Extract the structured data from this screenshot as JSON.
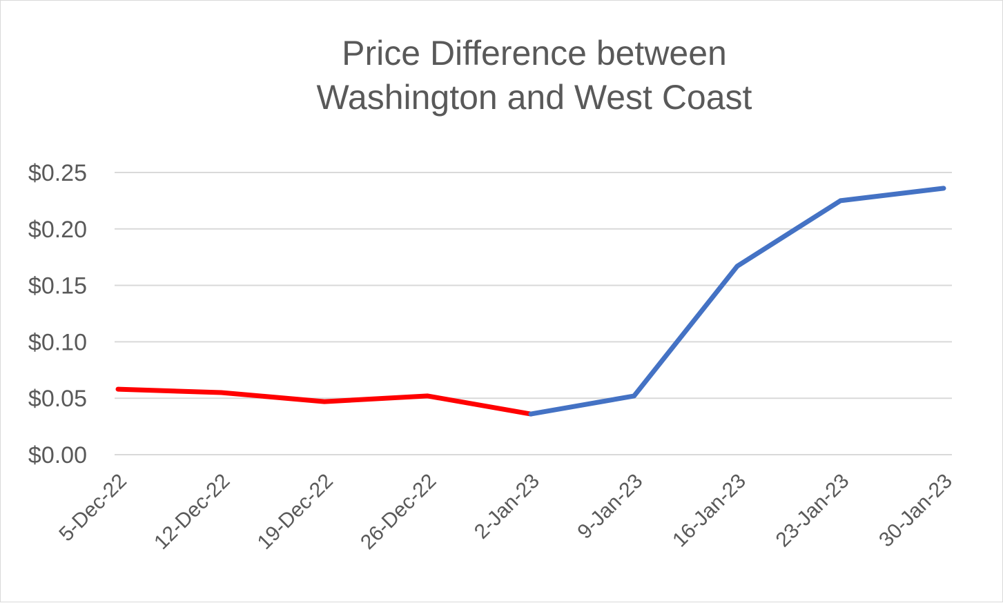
{
  "chart_data": {
    "type": "line",
    "title": [
      "Price Difference between",
      "Washington and West Coast"
    ],
    "xlabel": "",
    "ylabel": "",
    "x": [
      "5-Dec-22",
      "12-Dec-22",
      "19-Dec-22",
      "26-Dec-22",
      "2-Jan-23",
      "9-Jan-23",
      "16-Jan-23",
      "23-Jan-23",
      "30-Jan-23"
    ],
    "series": [
      {
        "color": "#ff0000",
        "x": [
          "5-Dec-22",
          "12-Dec-22",
          "19-Dec-22",
          "26-Dec-22",
          "2-Jan-23"
        ],
        "values": [
          0.058,
          0.055,
          0.047,
          0.052,
          0.036
        ]
      },
      {
        "color": "#4472c4",
        "x": [
          "2-Jan-23",
          "9-Jan-23",
          "16-Jan-23",
          "23-Jan-23",
          "30-Jan-23"
        ],
        "values": [
          0.036,
          0.052,
          0.167,
          0.225,
          0.236
        ]
      }
    ],
    "ylim": [
      0,
      0.25
    ],
    "yticks": [
      0,
      0.05,
      0.1,
      0.15,
      0.2,
      0.25
    ],
    "ytick_labels": [
      "$0.00",
      "$0.05",
      "$0.10",
      "$0.15",
      "$0.20",
      "$0.25"
    ],
    "grid": true,
    "legend": "none",
    "gridline_color": "#d9d9d9"
  }
}
